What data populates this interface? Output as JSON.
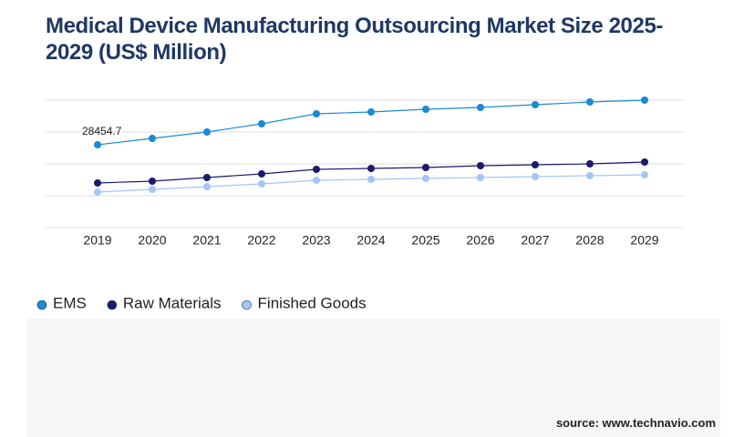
{
  "chart_data": {
    "type": "line",
    "title": "Medical Device Manufacturing Outsourcing Market Size 2025-2029 (US$ Million)",
    "source": "source: www.technavio.com",
    "categories": [
      "2019",
      "2020",
      "2021",
      "2022",
      "2023",
      "2024",
      "2025",
      "2026",
      "2027",
      "2028",
      "2029"
    ],
    "series": [
      {
        "name": "EMS",
        "color": "#1a8ad4",
        "values": [
          28454.7,
          30645,
          32834,
          35648,
          39088,
          39713,
          40651,
          41276,
          42215,
          43153,
          43778
        ]
      },
      {
        "name": "Raw Materials",
        "color": "#1b1a6b",
        "values": [
          15322,
          15948,
          17199,
          18449,
          20013,
          20326,
          20638,
          21264,
          21576,
          21889,
          22514
        ]
      },
      {
        "name": "Finished Goods",
        "color": "#a3c6f2",
        "values": [
          12195,
          13133,
          14072,
          15010,
          16260,
          16573,
          16886,
          17199,
          17511,
          17824,
          18137
        ]
      }
    ],
    "ylim": [
      0,
      43778
    ]
  }
}
